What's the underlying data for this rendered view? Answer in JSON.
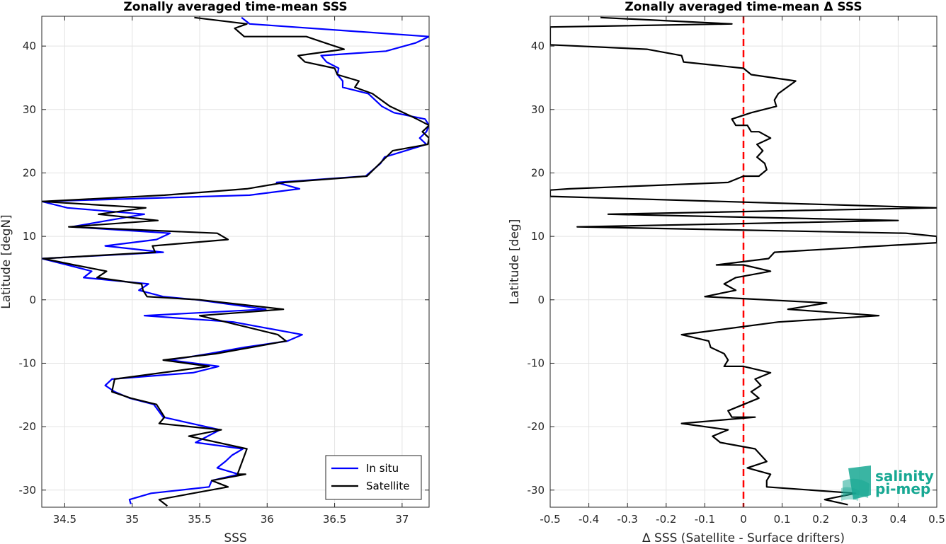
{
  "chart_data": [
    {
      "type": "line",
      "title": "Zonally averaged time-mean SSS",
      "xlabel": "SSS",
      "ylabel": "Latitude [degN]",
      "xlim": [
        34.33,
        37.2
      ],
      "ylim": [
        -32.7,
        44.7
      ],
      "xticks": [
        34.5,
        35,
        35.5,
        36,
        36.5,
        37
      ],
      "xtick_labels": [
        "34.5",
        "35",
        "35.5",
        "36",
        "36.5",
        "37"
      ],
      "yticks": [
        -30,
        -20,
        -10,
        0,
        10,
        20,
        30,
        40
      ],
      "ytick_labels": [
        "-30",
        "-20",
        "-10",
        "0",
        "10",
        "20",
        "30",
        "40"
      ],
      "grid": true,
      "legend": "bottom-right",
      "series": [
        {
          "name": "In situ",
          "color": "#0000ff",
          "points": [
            [
              35.81,
              44.5
            ],
            [
              35.87,
              43.5
            ],
            [
              37.2,
              41.5
            ],
            [
              37.1,
              40.5
            ],
            [
              36.88,
              39.2
            ],
            [
              36.4,
              38.5
            ],
            [
              36.44,
              37.5
            ],
            [
              36.53,
              36.5
            ],
            [
              36.52,
              35.5
            ],
            [
              36.56,
              34.5
            ],
            [
              36.56,
              33.5
            ],
            [
              36.75,
              32.5
            ],
            [
              36.85,
              30.5
            ],
            [
              36.94,
              29.5
            ],
            [
              37.17,
              28.5
            ],
            [
              37.2,
              27.5
            ],
            [
              37.18,
              26.5
            ],
            [
              37.13,
              25.5
            ],
            [
              37.18,
              24.5
            ],
            [
              36.87,
              22.5
            ],
            [
              36.84,
              21.5
            ],
            [
              36.73,
              19.5
            ],
            [
              36.07,
              18.5
            ],
            [
              36.24,
              17.5
            ],
            [
              35.87,
              16.5
            ],
            [
              34.33,
              15.5
            ],
            [
              34.52,
              14.5
            ],
            [
              35.09,
              13.5
            ],
            [
              34.82,
              12.5
            ],
            [
              34.55,
              11.5
            ],
            [
              35.28,
              10.5
            ],
            [
              35.18,
              9.5
            ],
            [
              34.8,
              8.5
            ],
            [
              35.23,
              7.5
            ],
            [
              34.33,
              6.5
            ],
            [
              34.52,
              5.5
            ],
            [
              34.7,
              4.5
            ],
            [
              34.64,
              3.5
            ],
            [
              35.12,
              2.5
            ],
            [
              35.05,
              1.5
            ],
            [
              35.23,
              0.5
            ],
            [
              35.48,
              0
            ],
            [
              35.99,
              -1.5
            ],
            [
              35.09,
              -2.5
            ],
            [
              35.75,
              -3.5
            ],
            [
              36.26,
              -5.5
            ],
            [
              36.15,
              -6.5
            ],
            [
              35.83,
              -7.5
            ],
            [
              35.57,
              -8.5
            ],
            [
              35.28,
              -9.5
            ],
            [
              35.64,
              -10.5
            ],
            [
              35.45,
              -11.5
            ],
            [
              34.85,
              -12.5
            ],
            [
              34.8,
              -13.5
            ],
            [
              34.87,
              -14.5
            ],
            [
              34.98,
              -15.5
            ],
            [
              35.16,
              -16.5
            ],
            [
              35.23,
              -18.5
            ],
            [
              35.65,
              -20.5
            ],
            [
              35.47,
              -22.5
            ],
            [
              35.82,
              -23.5
            ],
            [
              35.74,
              -24.5
            ],
            [
              35.69,
              -25.5
            ],
            [
              35.63,
              -26.5
            ],
            [
              35.79,
              -27.5
            ],
            [
              35.59,
              -28.5
            ],
            [
              35.57,
              -29.5
            ],
            [
              35.14,
              -30.5
            ],
            [
              34.98,
              -31.5
            ],
            [
              34.99,
              -32.2
            ]
          ]
        },
        {
          "name": "Satellite",
          "color": "#000000",
          "points": [
            [
              35.46,
              44.5
            ],
            [
              35.85,
              43.5
            ],
            [
              35.76,
              42.8
            ],
            [
              35.83,
              41.5
            ],
            [
              36.29,
              41.5
            ],
            [
              36.43,
              40.5
            ],
            [
              36.57,
              39.5
            ],
            [
              36.23,
              38.5
            ],
            [
              36.28,
              37.5
            ],
            [
              36.5,
              36.5
            ],
            [
              36.52,
              35.5
            ],
            [
              36.68,
              34.5
            ],
            [
              36.65,
              33.5
            ],
            [
              36.78,
              32.5
            ],
            [
              36.91,
              30.5
            ],
            [
              37.11,
              28.5
            ],
            [
              37.2,
              27.5
            ],
            [
              37.15,
              26.5
            ],
            [
              37.2,
              25.5
            ],
            [
              37.19,
              24.5
            ],
            [
              36.93,
              23.5
            ],
            [
              36.74,
              19.5
            ],
            [
              36.13,
              18.5
            ],
            [
              35.85,
              17.5
            ],
            [
              35.24,
              16.5
            ],
            [
              34.33,
              15.5
            ],
            [
              35.1,
              14.5
            ],
            [
              34.75,
              13.5
            ],
            [
              35.19,
              12.5
            ],
            [
              34.53,
              11.5
            ],
            [
              35.63,
              10.5
            ],
            [
              35.71,
              9.5
            ],
            [
              35.15,
              8.5
            ],
            [
              35.17,
              7.5
            ],
            [
              34.34,
              6.5
            ],
            [
              34.57,
              5.5
            ],
            [
              34.81,
              4.5
            ],
            [
              34.74,
              3.5
            ],
            [
              35.07,
              2.5
            ],
            [
              35.08,
              1.5
            ],
            [
              35.11,
              0.5
            ],
            [
              35.5,
              0
            ],
            [
              36.12,
              -1.5
            ],
            [
              35.5,
              -2.5
            ],
            [
              36.08,
              -5.5
            ],
            [
              36.14,
              -6.5
            ],
            [
              35.62,
              -8.5
            ],
            [
              35.23,
              -9.5
            ],
            [
              35.57,
              -10.5
            ],
            [
              34.87,
              -12.5
            ],
            [
              34.85,
              -14.5
            ],
            [
              34.99,
              -15.5
            ],
            [
              35.18,
              -16.5
            ],
            [
              35.24,
              -18.5
            ],
            [
              35.2,
              -19.5
            ],
            [
              35.66,
              -20.5
            ],
            [
              35.42,
              -21.5
            ],
            [
              35.85,
              -23.5
            ],
            [
              35.78,
              -27.5
            ],
            [
              35.84,
              -27.5
            ],
            [
              35.59,
              -28.5
            ],
            [
              35.71,
              -29.5
            ],
            [
              35.45,
              -30.5
            ],
            [
              35.2,
              -31.5
            ],
            [
              35.26,
              -32.5
            ]
          ]
        }
      ]
    },
    {
      "type": "line",
      "title": "Zonally averaged time-mean Δ SSS",
      "xlabel": "Δ SSS (Satellite - Surface drifters)",
      "ylabel": "Latitude [deg]",
      "xlim": [
        -0.5,
        0.5
      ],
      "ylim": [
        -32.7,
        44.7
      ],
      "xticks": [
        -0.5,
        -0.4,
        -0.3,
        -0.2,
        -0.1,
        0,
        0.1,
        0.2,
        0.3,
        0.4,
        0.5
      ],
      "xtick_labels": [
        "-0.5",
        "-0.4",
        "-0.3",
        "-0.2",
        "-0.1",
        "0",
        "0.1",
        "0.2",
        "0.3",
        "0.4",
        "0.5"
      ],
      "yticks": [
        -30,
        -20,
        -10,
        0,
        10,
        20,
        30,
        40
      ],
      "ytick_labels": [
        "-30",
        "-20",
        "-10",
        "0",
        "10",
        "20",
        "30",
        "40"
      ],
      "grid": true,
      "reference_line": {
        "x": 0,
        "color": "#ff0000",
        "style": "dashed"
      },
      "series": [
        {
          "color": "#000000",
          "points": [
            [
              -0.37,
              44.5
            ],
            [
              -0.03,
              43.5
            ],
            [
              -0.5,
              43.0
            ],
            [
              -0.5,
              40.2
            ],
            [
              -0.25,
              39.5
            ],
            [
              -0.16,
              38.5
            ],
            [
              -0.155,
              37.5
            ],
            [
              0.0,
              36.5
            ],
            [
              0.02,
              35.5
            ],
            [
              0.135,
              34.5
            ],
            [
              0.09,
              32.5
            ],
            [
              0.08,
              31.5
            ],
            [
              0.085,
              30.5
            ],
            [
              0.02,
              29.5
            ],
            [
              -0.03,
              28.5
            ],
            [
              -0.02,
              27.5
            ],
            [
              0.01,
              27.5
            ],
            [
              0.02,
              26.5
            ],
            [
              0.04,
              26.5
            ],
            [
              0.07,
              25.5
            ],
            [
              0.035,
              24.5
            ],
            [
              0.05,
              23.5
            ],
            [
              0.035,
              22.5
            ],
            [
              0.055,
              21.5
            ],
            [
              0.06,
              20.5
            ],
            [
              0.04,
              19.5
            ],
            [
              0.0,
              19.5
            ],
            [
              -0.04,
              18.5
            ],
            [
              -0.45,
              17.5
            ],
            [
              -0.5,
              17.3
            ],
            [
              -0.5,
              16.3
            ],
            [
              0.5,
              14.5
            ],
            [
              -0.35,
              13.5
            ],
            [
              0.4,
              12.5
            ],
            [
              -0.43,
              11.5
            ],
            [
              0.42,
              10.5
            ],
            [
              0.5,
              10.0
            ],
            [
              0.5,
              9.0
            ],
            [
              0.08,
              7.5
            ],
            [
              0.065,
              6.5
            ],
            [
              -0.07,
              5.5
            ],
            [
              0.0,
              5.5
            ],
            [
              0.07,
              4.5
            ],
            [
              -0.02,
              3.5
            ],
            [
              -0.05,
              2.5
            ],
            [
              -0.02,
              1.5
            ],
            [
              -0.1,
              0.5
            ],
            [
              0.215,
              -0.5
            ],
            [
              0.115,
              -1.5
            ],
            [
              0.35,
              -2.5
            ],
            [
              0.09,
              -3.5
            ],
            [
              -0.16,
              -5.5
            ],
            [
              -0.09,
              -6.5
            ],
            [
              -0.085,
              -7.5
            ],
            [
              -0.05,
              -8.5
            ],
            [
              -0.04,
              -9.5
            ],
            [
              -0.05,
              -10.5
            ],
            [
              0.0,
              -10.5
            ],
            [
              0.07,
              -11.5
            ],
            [
              0.03,
              -12.5
            ],
            [
              0.045,
              -13.5
            ],
            [
              0.02,
              -14.5
            ],
            [
              0.04,
              -15.5
            ],
            [
              -0.04,
              -17.5
            ],
            [
              -0.03,
              -18.5
            ],
            [
              0.03,
              -18.5
            ],
            [
              -0.16,
              -19.5
            ],
            [
              -0.04,
              -20.5
            ],
            [
              -0.08,
              -21.5
            ],
            [
              -0.06,
              -22.5
            ],
            [
              0.03,
              -23.5
            ],
            [
              0.06,
              -25.5
            ],
            [
              0.01,
              -26.5
            ],
            [
              0.07,
              -27.5
            ],
            [
              0.06,
              -28.5
            ],
            [
              0.06,
              -29.5
            ],
            [
              0.29,
              -30.5
            ],
            [
              0.21,
              -31.5
            ],
            [
              0.27,
              -32.3
            ]
          ]
        }
      ]
    }
  ],
  "logo": {
    "line1": "salinity",
    "line2": "pi-mep",
    "color": "#17a893"
  }
}
